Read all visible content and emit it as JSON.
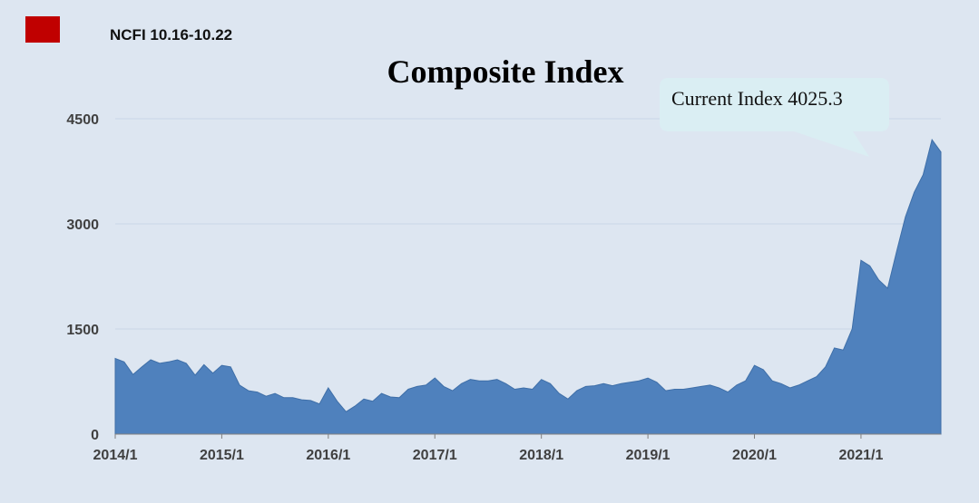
{
  "header": {
    "label": "NCFI 10.16-10.22"
  },
  "callout": {
    "text": "Current Index 4025.3"
  },
  "colors": {
    "background": "#dde6f1",
    "area": "#4f81bd",
    "marker": "#c00000",
    "callout": "#daeef3"
  },
  "chart_data": {
    "type": "area",
    "title": "Composite Index",
    "xlabel": "",
    "ylabel": "",
    "ylim": [
      0,
      4500
    ],
    "yticks": [
      0,
      1500,
      3000,
      4500
    ],
    "xticks": [
      "2014/1",
      "2015/1",
      "2016/1",
      "2017/1",
      "2018/1",
      "2019/1",
      "2020/1",
      "2021/1"
    ],
    "x_range": [
      "2014-01",
      "2021-10"
    ],
    "grid": true,
    "legend": "none",
    "series": [
      {
        "x": [
          "2014-01",
          "2014-02",
          "2014-03",
          "2014-04",
          "2014-05",
          "2014-06",
          "2014-07",
          "2014-08",
          "2014-09",
          "2014-10",
          "2014-11",
          "2014-12",
          "2015-01",
          "2015-02",
          "2015-03",
          "2015-04",
          "2015-05",
          "2015-06",
          "2015-07",
          "2015-08",
          "2015-09",
          "2015-10",
          "2015-11",
          "2015-12",
          "2016-01",
          "2016-02",
          "2016-03",
          "2016-04",
          "2016-05",
          "2016-06",
          "2016-07",
          "2016-08",
          "2016-09",
          "2016-10",
          "2016-11",
          "2016-12",
          "2017-01",
          "2017-02",
          "2017-03",
          "2017-04",
          "2017-05",
          "2017-06",
          "2017-07",
          "2017-08",
          "2017-09",
          "2017-10",
          "2017-11",
          "2017-12",
          "2018-01",
          "2018-02",
          "2018-03",
          "2018-04",
          "2018-05",
          "2018-06",
          "2018-07",
          "2018-08",
          "2018-09",
          "2018-10",
          "2018-11",
          "2018-12",
          "2019-01",
          "2019-02",
          "2019-03",
          "2019-04",
          "2019-05",
          "2019-06",
          "2019-07",
          "2019-08",
          "2019-09",
          "2019-10",
          "2019-11",
          "2019-12",
          "2020-01",
          "2020-02",
          "2020-03",
          "2020-04",
          "2020-05",
          "2020-06",
          "2020-07",
          "2020-08",
          "2020-09",
          "2020-10",
          "2020-11",
          "2020-12",
          "2021-01",
          "2021-02",
          "2021-03",
          "2021-04",
          "2021-05",
          "2021-06",
          "2021-07",
          "2021-08",
          "2021-09",
          "2021-10"
        ],
        "values": [
          1080,
          1030,
          850,
          960,
          1060,
          1010,
          1030,
          1060,
          1010,
          840,
          990,
          870,
          980,
          960,
          700,
          620,
          600,
          540,
          580,
          520,
          520,
          490,
          480,
          430,
          660,
          470,
          320,
          400,
          500,
          470,
          580,
          530,
          520,
          640,
          680,
          700,
          800,
          680,
          620,
          720,
          780,
          760,
          760,
          780,
          720,
          640,
          660,
          640,
          780,
          720,
          580,
          500,
          620,
          680,
          690,
          720,
          690,
          720,
          740,
          760,
          800,
          740,
          620,
          640,
          640,
          660,
          680,
          700,
          660,
          600,
          700,
          760,
          980,
          920,
          760,
          720,
          660,
          700,
          760,
          820,
          960,
          1230,
          1200,
          1500,
          2480,
          2400,
          2200,
          2080,
          2600,
          3100,
          3450,
          3700,
          4200,
          4025
        ]
      }
    ]
  }
}
